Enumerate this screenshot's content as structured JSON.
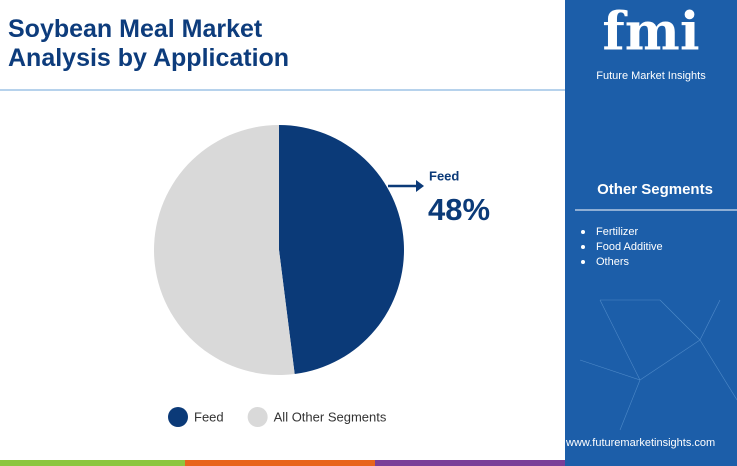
{
  "chart_data": {
    "type": "pie",
    "title": "Soybean Meal Market Analysis by Application",
    "categories": [
      "Feed",
      "All Other Segments"
    ],
    "values": [
      48,
      52
    ],
    "value_labels": [
      "48%",
      null
    ],
    "colors": [
      "#0b3a78",
      "#d9d9d9"
    ],
    "legend": "bottom"
  },
  "sidebar": {
    "logo": "fmi",
    "brand": "Future Market Insights",
    "heading": "Other Segments",
    "items": [
      "Fertilizer",
      "Food Additive",
      "Others"
    ],
    "url": "www.futuremarketinsights.com"
  }
}
